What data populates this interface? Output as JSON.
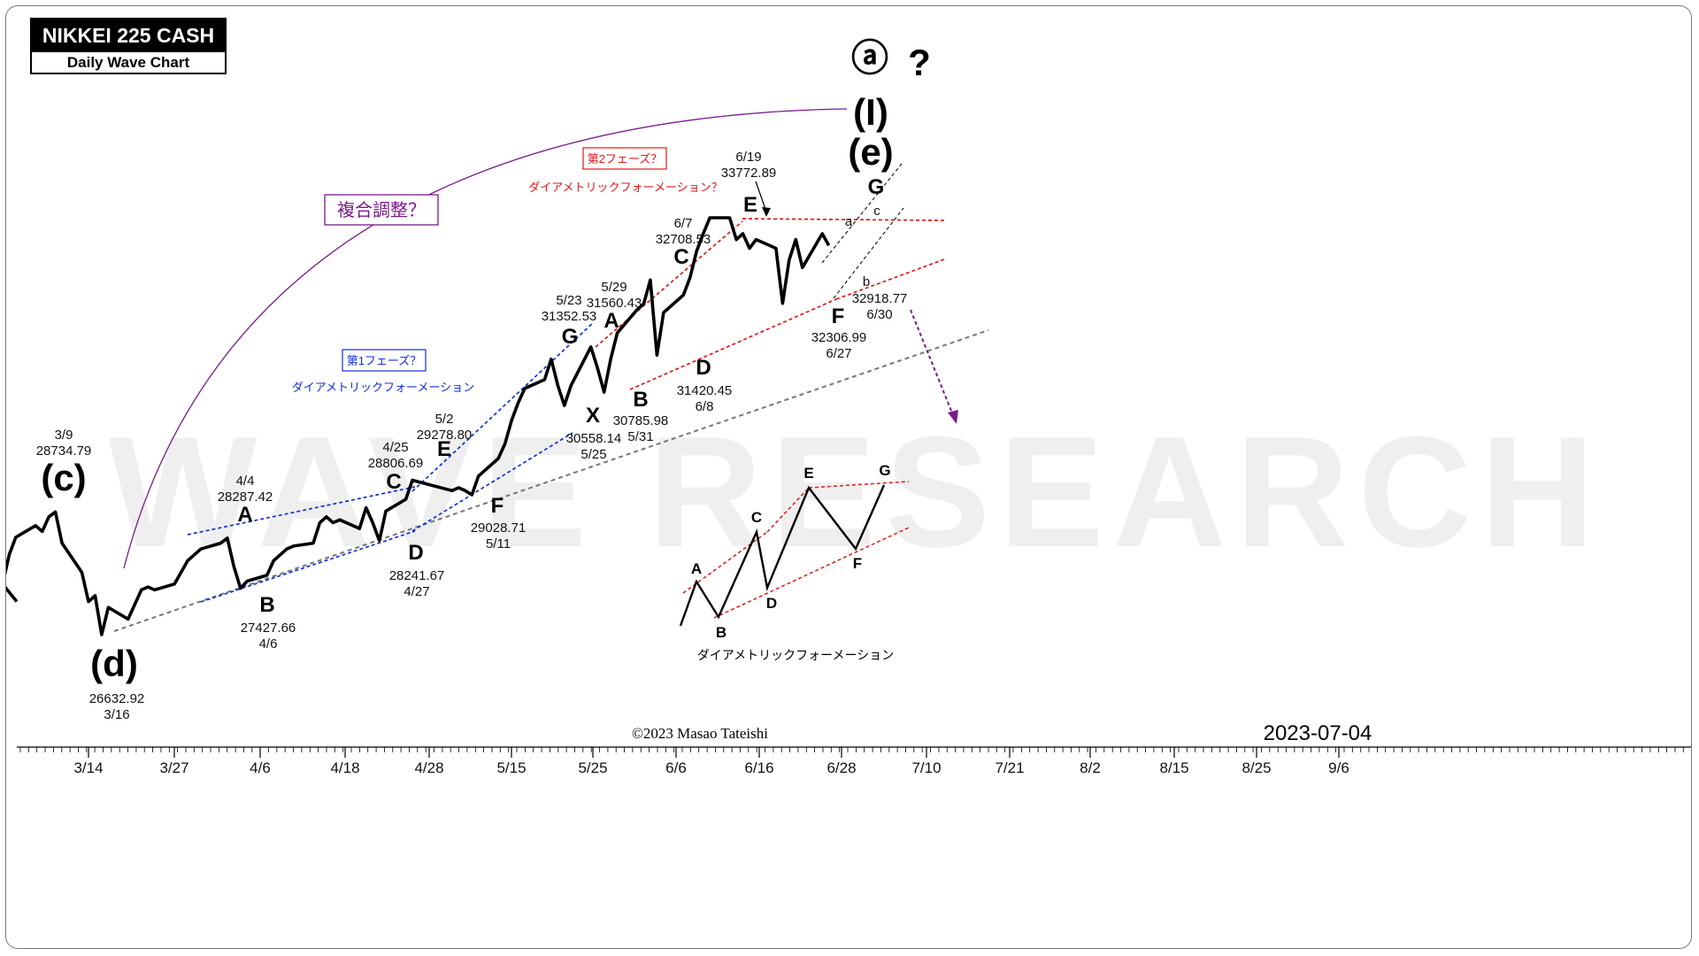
{
  "title_box": {
    "title": "NIKKEI 225 CASH",
    "subtitle": "Daily Wave Chart"
  },
  "watermark": "WAVE RESEARCH",
  "copyright": "©2023 Masao Tateishi",
  "date": "2023-07-04",
  "top_labels": {
    "circled": "ⓐ",
    "question": "?",
    "wave_I": "(I)",
    "wave_e": "(e)"
  },
  "annotations": {
    "complex_box": "複合調整？",
    "phase1_box": "第1フェーズ？",
    "phase1_text": "ダイアメトリックフォーメーション",
    "phase2_box": "第2フェーズ？",
    "phase2_text": "ダイアメトリックフォーメーション？",
    "diagram_caption": "ダイアメトリックフォーメーション"
  },
  "wave_labels": {
    "c": "(c)",
    "d": "(d)",
    "A1": "A",
    "B1": "B",
    "C1": "C",
    "D1": "D",
    "E1": "E",
    "F1": "F",
    "G1": "G",
    "X": "X",
    "A2": "A",
    "B2": "B",
    "C2": "C",
    "D2": "D",
    "E2": "E",
    "F2": "F",
    "G2": "G",
    "a": "a",
    "b": "b",
    "c_small": "c"
  },
  "price_labels": {
    "c": [
      "3/9",
      "28734.79"
    ],
    "d": [
      "26632.92",
      "3/16"
    ],
    "A1": [
      "4/4",
      "28287.42"
    ],
    "B1": [
      "27427.66",
      "4/6"
    ],
    "C1": [
      "4/25",
      "28806.69"
    ],
    "D1": [
      "28241.67",
      "4/27"
    ],
    "E1": [
      "5/2",
      "29278.80"
    ],
    "F1": [
      "29028.71",
      "5/11"
    ],
    "G1": [
      "5/23",
      "31352.53"
    ],
    "X": [
      "30558.14",
      "5/25"
    ],
    "A2": [
      "5/29",
      "31560.43"
    ],
    "B2": [
      "30785.98",
      "5/31"
    ],
    "C2": [
      "6/7",
      "32708.53"
    ],
    "D2": [
      "31420.45",
      "6/8"
    ],
    "E2": [
      "6/19",
      "33772.89"
    ],
    "F2": [
      "32306.99",
      "6/27"
    ],
    "b": [
      "32918.77",
      "6/30"
    ]
  },
  "diagram_labels": [
    "A",
    "B",
    "C",
    "D",
    "E",
    "F",
    "G"
  ],
  "colors": {
    "price": "#000000",
    "blue": "#1030d8",
    "red": "#e01818",
    "purple": "#7a1a8a",
    "gray": "#777777"
  },
  "chart_data": {
    "type": "line",
    "title": "NIKKEI 225 CASH",
    "subtitle": "Daily Wave Chart",
    "x_tick_labels": [
      "3/14",
      "3/27",
      "4/6",
      "4/18",
      "4/28",
      "5/15",
      "5/25",
      "6/6",
      "6/16",
      "6/28",
      "7/10",
      "7/21",
      "8/2",
      "8/15",
      "8/25",
      "9/6"
    ],
    "x": [
      "3/1",
      "3/2",
      "3/3",
      "3/6",
      "3/7",
      "3/8",
      "3/9",
      "3/10",
      "3/13",
      "3/14",
      "3/15",
      "3/16",
      "3/17",
      "3/20",
      "3/22",
      "3/23",
      "3/24",
      "3/27",
      "3/28",
      "3/29",
      "3/30",
      "3/31",
      "4/3",
      "4/4",
      "4/5",
      "4/6",
      "4/7",
      "4/10",
      "4/11",
      "4/12",
      "4/13",
      "4/14",
      "4/17",
      "4/18",
      "4/19",
      "4/20",
      "4/21",
      "4/24",
      "4/25",
      "4/26",
      "4/27",
      "4/28",
      "5/1",
      "5/2",
      "5/8",
      "5/9",
      "5/10",
      "5/11",
      "5/12",
      "5/15",
      "5/16",
      "5/17",
      "5/18",
      "5/19",
      "5/22",
      "5/23",
      "5/24",
      "5/25",
      "5/26",
      "5/29",
      "5/30",
      "5/31",
      "6/1",
      "6/2",
      "6/5",
      "6/6",
      "6/7",
      "6/8",
      "6/9",
      "6/12",
      "6/13",
      "6/14",
      "6/15",
      "6/16",
      "6/19",
      "6/20",
      "6/21",
      "6/22",
      "6/23",
      "6/26",
      "6/27",
      "6/28",
      "6/29",
      "6/30",
      "7/3",
      "7/4"
    ],
    "series": [
      {
        "values": [
          27500,
          28000,
          28300,
          28500,
          28400,
          28650,
          28734.79,
          28200,
          27700,
          27200,
          27300,
          26632.92,
          27100,
          26900,
          27400,
          27450,
          27400,
          27500,
          27700,
          27900,
          28000,
          28100,
          28200,
          28287.42,
          27800,
          27427.66,
          27550,
          27650,
          27900,
          28000,
          28100,
          28150,
          28200,
          28550,
          28650,
          28550,
          28600,
          28450,
          28806.69,
          28550,
          28241.67,
          28750,
          28950,
          29278.8,
          29100,
          29150,
          29100,
          29028.71,
          29350,
          29650,
          29900,
          30300,
          30600,
          30850,
          31000,
          31352.53,
          30900,
          30558.14,
          30900,
          31560.43,
          31200,
          30785.98,
          31350,
          31800,
          32200,
          32300,
          32708.53,
          31420.45,
          32150,
          32450,
          32750,
          33200,
          33500,
          33772.89,
          33772.89,
          33400,
          33500,
          33250,
          33400,
          33250,
          32306.99,
          33050,
          33400,
          32918.77,
          33500,
          33300
        ]
      }
    ],
    "ylim": [
      26000,
      34800
    ],
    "grid": false
  }
}
